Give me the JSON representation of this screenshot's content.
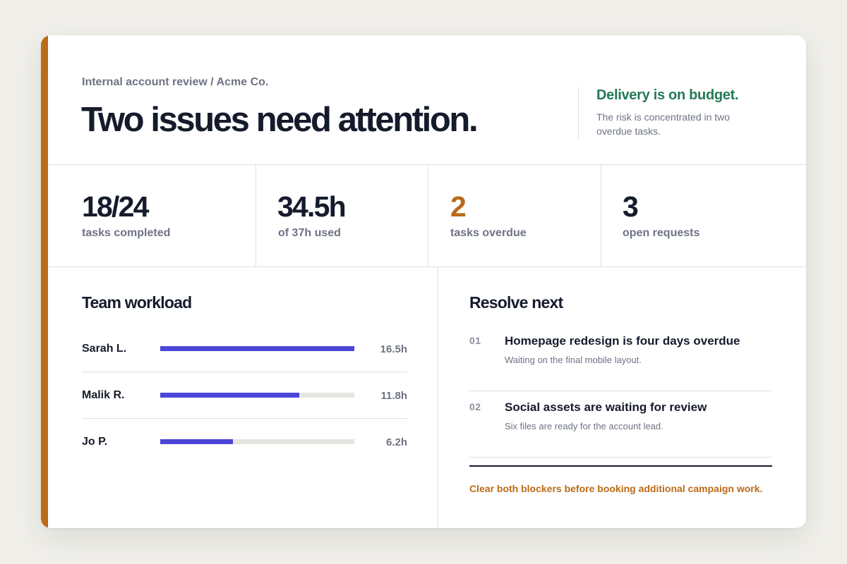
{
  "colors": {
    "accent": "#bb6a17",
    "success": "#237a55",
    "bar": "#4b45d8",
    "track": "#e6e5e1",
    "text": "#161b2c",
    "muted": "#6e7384"
  },
  "header": {
    "breadcrumb": "Internal account review / Acme Co.",
    "headline": "Two issues need attention.",
    "summary_title": "Delivery is on budget.",
    "summary_text": "The risk is concentrated in two overdue tasks."
  },
  "metrics": [
    {
      "value": "18/24",
      "label": "tasks completed",
      "status": "normal"
    },
    {
      "value": "34.5h",
      "label": "of 37h used",
      "status": "normal"
    },
    {
      "value": "2",
      "label": "tasks overdue",
      "status": "warning"
    },
    {
      "value": "3",
      "label": "open requests",
      "status": "normal"
    }
  ],
  "workload": {
    "title": "Team workload",
    "max_hours": 16.5,
    "members": [
      {
        "name": "Sarah L.",
        "hours_label": "16.5h",
        "hours": 16.5
      },
      {
        "name": "Malik R.",
        "hours_label": "11.8h",
        "hours": 11.8
      },
      {
        "name": "Jo P.",
        "hours_label": "6.2h",
        "hours": 6.2
      }
    ]
  },
  "resolve": {
    "title": "Resolve next",
    "items": [
      {
        "num": "01",
        "title": "Homepage redesign is four days overdue",
        "sub": "Waiting on the final mobile layout."
      },
      {
        "num": "02",
        "title": "Social assets are waiting for review",
        "sub": "Six files are ready for the account lead."
      }
    ],
    "callout": "Clear both blockers before booking additional campaign work."
  }
}
